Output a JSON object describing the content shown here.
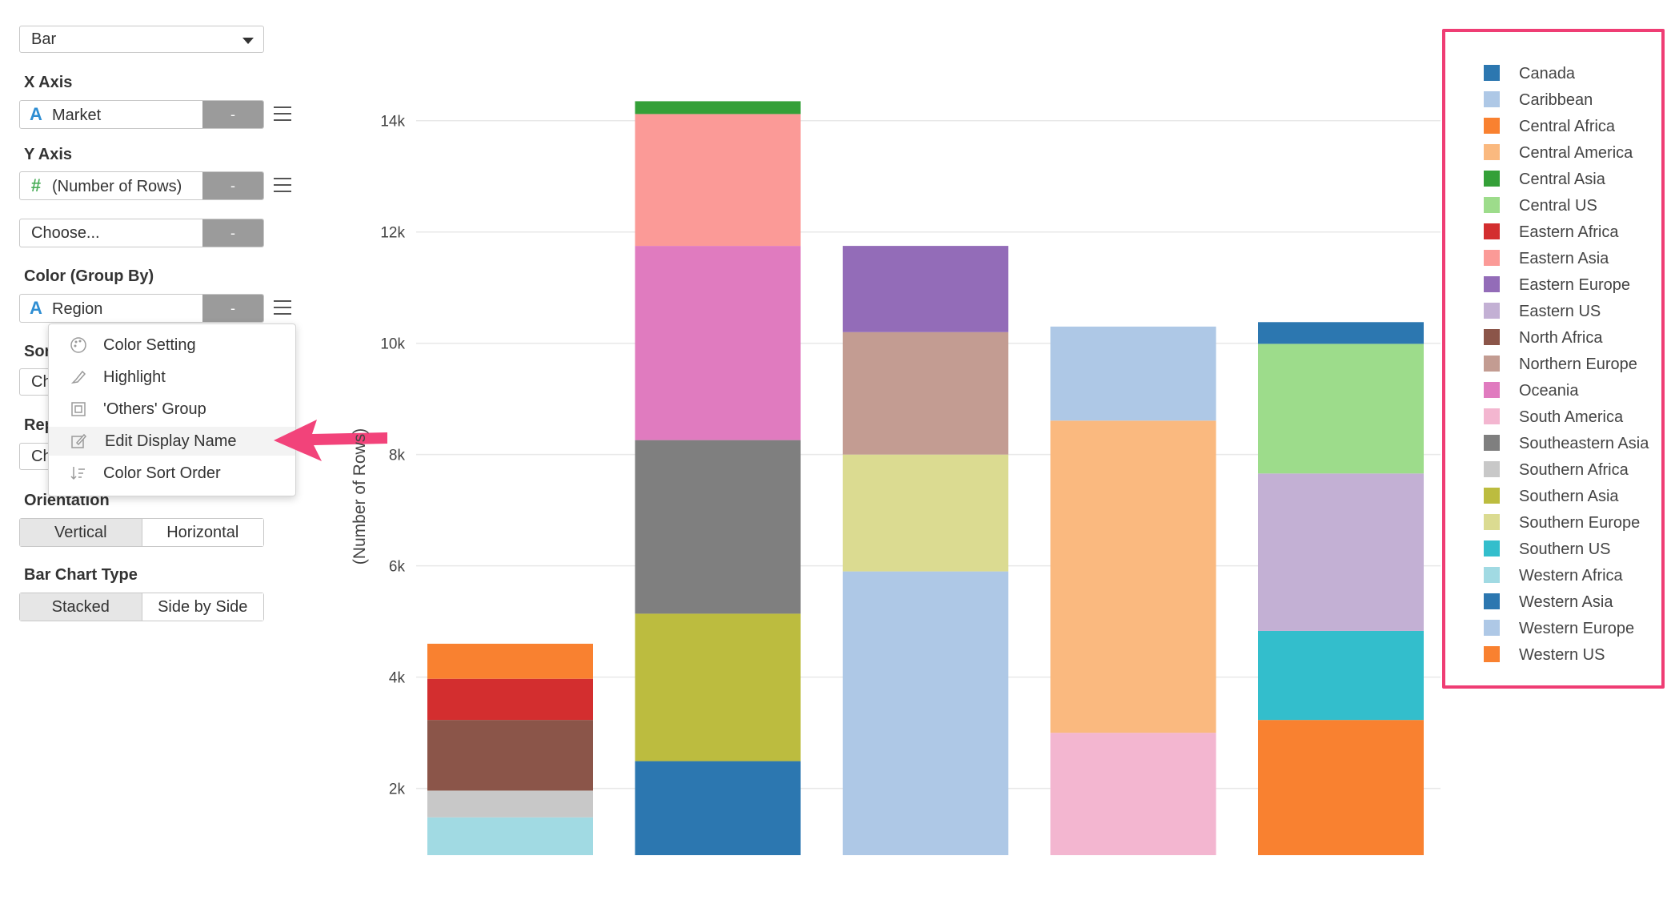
{
  "chart_type_select": "Bar",
  "x_axis": {
    "label": "X Axis",
    "field": "Market",
    "type_icon": "A",
    "minus": "-"
  },
  "y_axis": {
    "label": "Y Axis",
    "field": "(Number of Rows)",
    "type_icon": "#",
    "minus": "-",
    "choose": "Choose...",
    "choose_minus": "-"
  },
  "color": {
    "label": "Color (Group By)",
    "field": "Region",
    "type_icon": "A",
    "minus": "-"
  },
  "hidden_labels": {
    "sort": "Sor",
    "sort_select": "Ch",
    "repeat": "Rep",
    "repeat_select": "Ch"
  },
  "menu": [
    {
      "label": "Color Setting",
      "icon": "palette-icon"
    },
    {
      "label": "Highlight",
      "icon": "highlighter-icon"
    },
    {
      "label": "'Others' Group",
      "icon": "group-icon"
    },
    {
      "label": "Edit Display Name",
      "icon": "edit-icon"
    },
    {
      "label": "Color Sort Order",
      "icon": "sort-icon"
    }
  ],
  "orientation": {
    "label": "Orientation",
    "options": [
      "Vertical",
      "Horizontal"
    ],
    "selected": "Vertical"
  },
  "bar_chart_type": {
    "label": "Bar Chart Type",
    "options": [
      "Stacked",
      "Side by Side"
    ],
    "selected": "Stacked"
  },
  "annotation_colors": {
    "arrow": "#f2437a",
    "legend_border": "#ef3d74"
  },
  "chart_data": {
    "type": "bar",
    "stacked": true,
    "ylabel": "(Number of Rows)",
    "ylim": [
      800,
      14500
    ],
    "yticks": [
      2000,
      4000,
      6000,
      8000,
      10000,
      12000,
      14000
    ],
    "ytick_labels": [
      "2k",
      "4k",
      "6k",
      "8k",
      "10k",
      "12k",
      "14k"
    ],
    "grid": true,
    "legend_position": "right",
    "bars": [
      {
        "segments": [
          {
            "series": "Western Africa",
            "from": 800,
            "to": 1480
          },
          {
            "series": "Southern Africa",
            "from": 1480,
            "to": 1960
          },
          {
            "series": "North Africa",
            "from": 1960,
            "to": 3230
          },
          {
            "series": "Eastern Africa",
            "from": 3230,
            "to": 3970
          },
          {
            "series": "Central Africa",
            "from": 3970,
            "to": 4600
          }
        ]
      },
      {
        "segments": [
          {
            "series": "Western Asia",
            "from": 800,
            "to": 2490
          },
          {
            "series": "Southern Asia",
            "from": 2490,
            "to": 5140
          },
          {
            "series": "Southeastern Asia",
            "from": 5140,
            "to": 8260
          },
          {
            "series": "Oceania",
            "from": 8260,
            "to": 11750
          },
          {
            "series": "Eastern Asia",
            "from": 11750,
            "to": 14120
          },
          {
            "series": "Central Asia",
            "from": 14120,
            "to": 14350
          }
        ]
      },
      {
        "segments": [
          {
            "series": "Western Europe",
            "from": 800,
            "to": 5900
          },
          {
            "series": "Southern Europe",
            "from": 5900,
            "to": 8000
          },
          {
            "series": "Northern Europe",
            "from": 8000,
            "to": 10200
          },
          {
            "series": "Eastern Europe",
            "from": 10200,
            "to": 11750
          }
        ]
      },
      {
        "segments": [
          {
            "series": "South America",
            "from": 800,
            "to": 3000
          },
          {
            "series": "Central America",
            "from": 3000,
            "to": 8610
          },
          {
            "series": "Caribbean",
            "from": 8610,
            "to": 10300
          }
        ]
      },
      {
        "segments": [
          {
            "series": "Western US",
            "from": 800,
            "to": 3230
          },
          {
            "series": "Southern US",
            "from": 3230,
            "to": 4830
          },
          {
            "series": "Eastern US",
            "from": 4830,
            "to": 7660
          },
          {
            "series": "Central US",
            "from": 7660,
            "to": 9990
          },
          {
            "series": "Canada",
            "from": 9990,
            "to": 10380
          }
        ]
      }
    ],
    "legend": [
      {
        "name": "Canada",
        "color": "#2c77b0"
      },
      {
        "name": "Caribbean",
        "color": "#aec8e6"
      },
      {
        "name": "Central Africa",
        "color": "#f98130"
      },
      {
        "name": "Central America",
        "color": "#fab97f"
      },
      {
        "name": "Central Asia",
        "color": "#34a038"
      },
      {
        "name": "Central US",
        "color": "#9ddc8b"
      },
      {
        "name": "Eastern Africa",
        "color": "#d32e2f"
      },
      {
        "name": "Eastern Asia",
        "color": "#fb9a97"
      },
      {
        "name": "Eastern Europe",
        "color": "#936cb8"
      },
      {
        "name": "Eastern US",
        "color": "#c3b0d4"
      },
      {
        "name": "North Africa",
        "color": "#8b5549"
      },
      {
        "name": "Northern Europe",
        "color": "#c39c92"
      },
      {
        "name": "Oceania",
        "color": "#e07bbf"
      },
      {
        "name": "South America",
        "color": "#f3b6d0"
      },
      {
        "name": "Southeastern Asia",
        "color": "#7f7f7f"
      },
      {
        "name": "Southern Africa",
        "color": "#c8c8c8"
      },
      {
        "name": "Southern Asia",
        "color": "#bcbc3f"
      },
      {
        "name": "Southern Europe",
        "color": "#dbdb91"
      },
      {
        "name": "Southern US",
        "color": "#33becc"
      },
      {
        "name": "Western Africa",
        "color": "#a1dae3"
      },
      {
        "name": "Western Asia",
        "color": "#2c77b0"
      },
      {
        "name": "Western Europe",
        "color": "#aec8e6"
      },
      {
        "name": "Western US",
        "color": "#f98130"
      }
    ]
  }
}
